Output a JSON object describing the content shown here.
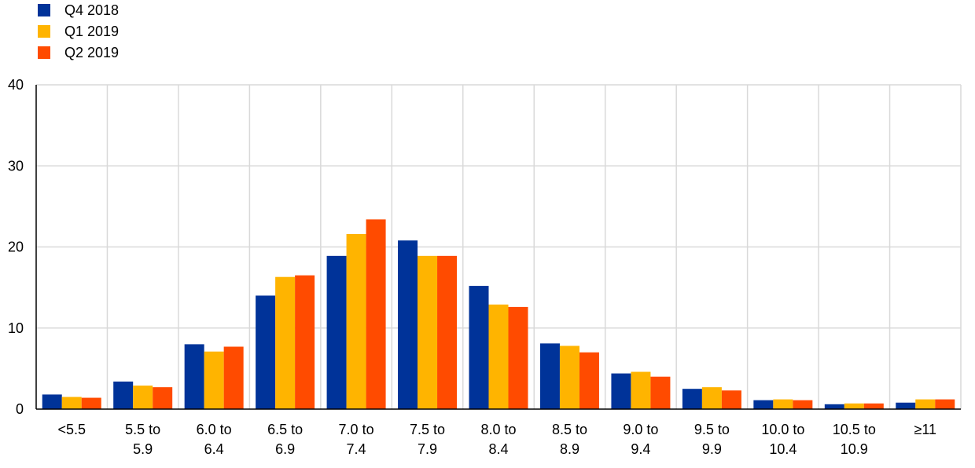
{
  "chart_data": {
    "type": "bar",
    "categories": [
      [
        "<5.5"
      ],
      [
        "5.5 to",
        "5.9"
      ],
      [
        "6.0 to",
        "6.4"
      ],
      [
        "6.5 to",
        "6.9"
      ],
      [
        "7.0 to",
        "7.4"
      ],
      [
        "7.5 to",
        "7.9"
      ],
      [
        "8.0 to",
        "8.4"
      ],
      [
        "8.5 to",
        "8.9"
      ],
      [
        "9.0 to",
        "9.4"
      ],
      [
        "9.5 to",
        "9.9"
      ],
      [
        "10.0 to",
        "10.4"
      ],
      [
        "10.5 to",
        "10.9"
      ],
      [
        "≥11"
      ]
    ],
    "series": [
      {
        "name": "Q4 2018",
        "color": "#003399",
        "values": [
          1.8,
          3.4,
          8.0,
          14.0,
          18.9,
          20.8,
          15.2,
          8.1,
          4.4,
          2.5,
          1.1,
          0.6,
          0.8
        ]
      },
      {
        "name": "Q1 2019",
        "color": "#FFB400",
        "values": [
          1.5,
          2.9,
          7.1,
          16.3,
          21.6,
          18.9,
          12.9,
          7.8,
          4.6,
          2.7,
          1.2,
          0.7,
          1.2
        ]
      },
      {
        "name": "Q2 2019",
        "color": "#FF4B00",
        "values": [
          1.4,
          2.7,
          7.7,
          16.5,
          23.4,
          18.9,
          12.6,
          7.0,
          4.0,
          2.3,
          1.1,
          0.7,
          1.2
        ]
      }
    ],
    "ylim": [
      0,
      40
    ],
    "yticks": [
      0,
      10,
      20,
      30,
      40
    ],
    "grid": true,
    "legend_position": "top-left",
    "title": "",
    "xlabel": "",
    "ylabel": ""
  }
}
